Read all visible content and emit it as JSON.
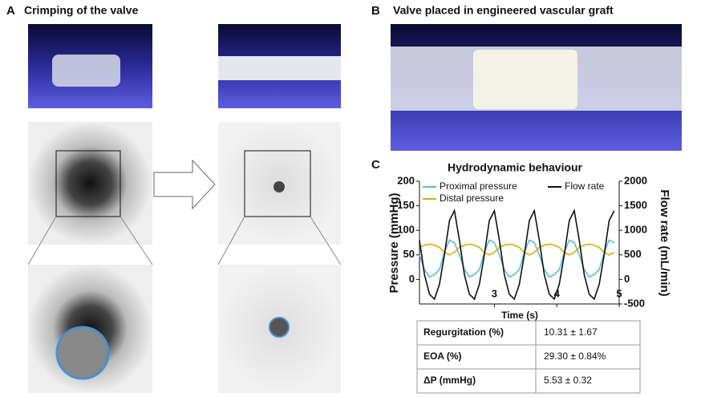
{
  "panels": {
    "a_label": "A",
    "a_title": "Crimping of the valve",
    "b_label": "B",
    "b_title": "Valve placed in engineered vascular graft",
    "c_label": "C"
  },
  "chart_data": {
    "type": "line",
    "title": "Hydrodynamic behaviour",
    "x_label": "Time (s)",
    "y_label": "Pressure (mmHg)",
    "y2_label": "Flow rate (mL/min)",
    "x": [
      1.8,
      1.88,
      1.96,
      2.04,
      2.12,
      2.2,
      2.28,
      2.36,
      2.44,
      2.52,
      2.6,
      2.68,
      2.76,
      2.84,
      2.92,
      3.0,
      3.08,
      3.16,
      3.24,
      3.32,
      3.4,
      3.48,
      3.56,
      3.64,
      3.72,
      3.8,
      3.88,
      3.96,
      4.04,
      4.12,
      4.2,
      4.28,
      4.36,
      4.44,
      4.52,
      4.6,
      4.68,
      4.76,
      4.84,
      4.92
    ],
    "xlim": [
      1.8,
      5
    ],
    "xticks": [
      3,
      4,
      5
    ],
    "ylim": [
      -50,
      200
    ],
    "yticks": [
      0,
      50,
      100,
      150,
      200
    ],
    "y2lim": [
      -500,
      2000
    ],
    "y2ticks": [
      -500,
      0,
      500,
      1000,
      1500,
      2000
    ],
    "series": [
      {
        "name": "Proximal pressure",
        "color": "#5bbcd6",
        "values": [
          50,
          20,
          5,
          10,
          20,
          55,
          80,
          75,
          50,
          20,
          5,
          10,
          20,
          55,
          80,
          75,
          50,
          20,
          5,
          10,
          20,
          55,
          80,
          75,
          50,
          20,
          5,
          10,
          20,
          55,
          80,
          75,
          50,
          20,
          5,
          10,
          20,
          55,
          80,
          75
        ]
      },
      {
        "name": "Distal pressure",
        "color": "#e0a910",
        "values": [
          65,
          70,
          72,
          70,
          65,
          55,
          50,
          55,
          65,
          70,
          72,
          70,
          65,
          55,
          50,
          55,
          65,
          70,
          72,
          70,
          65,
          55,
          50,
          55,
          65,
          70,
          72,
          70,
          65,
          55,
          50,
          55,
          65,
          70,
          72,
          70,
          65,
          55,
          50,
          55
        ]
      },
      {
        "name": "Flow rate",
        "color": "#111111",
        "axis": "y2",
        "values": [
          800,
          100,
          -300,
          -400,
          -100,
          500,
          1200,
          1400,
          800,
          100,
          -300,
          -400,
          -100,
          500,
          1200,
          1400,
          800,
          100,
          -300,
          -400,
          -100,
          500,
          1200,
          1400,
          800,
          100,
          -300,
          -400,
          -100,
          500,
          1200,
          1400,
          800,
          100,
          -300,
          -400,
          -100,
          500,
          1200,
          1400
        ]
      }
    ]
  },
  "table": {
    "rows": [
      [
        "Regurgitation (%)",
        "10.31 ± 1.67"
      ],
      [
        "EOA (%)",
        "29.30 ± 0.84%"
      ],
      [
        "ΔP (mmHg)",
        "5.53 ± 0.32"
      ]
    ]
  }
}
